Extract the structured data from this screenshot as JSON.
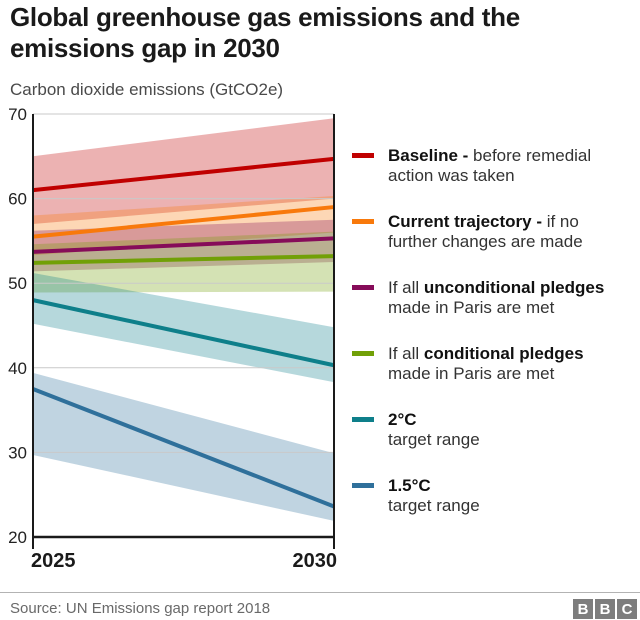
{
  "header": {
    "title_line1": "Global greenhouse gas emissions and the",
    "title_line2": "emissions gap in 2030",
    "subtitle": "Carbon dioxide emissions (GtCO2e)"
  },
  "chart_data": {
    "type": "line",
    "title": "Global greenhouse gas emissions and the emissions gap in 2030",
    "ylabel": "Carbon dioxide emissions (GtCO2e)",
    "x": [
      2025,
      2030
    ],
    "x_tick_labels": [
      "2025",
      "2030"
    ],
    "ylim": [
      20,
      70
    ],
    "yticks": [
      20,
      30,
      40,
      50,
      60,
      70
    ],
    "grid": true,
    "legend_position": "right",
    "band_opacity": 0.3,
    "series": [
      {
        "id": "baseline",
        "name": "Baseline - before remedial action was taken",
        "color": "#c00000",
        "values": [
          61,
          64.7
        ],
        "band_upper": [
          65,
          69.5
        ],
        "band_lower": [
          57,
          60
        ]
      },
      {
        "id": "current-trajectory",
        "name": "Current trajectory - if no further changes are made",
        "color": "#f8790b",
        "values": [
          55.5,
          59
        ],
        "band_upper": [
          58,
          60.3
        ],
        "band_lower": [
          53.3,
          56
        ]
      },
      {
        "id": "unconditional-pledges",
        "name": "If all unconditional pledges made in Paris are met",
        "color": "#860c59",
        "values": [
          53.7,
          55.3
        ],
        "band_upper": [
          56.2,
          57.5
        ],
        "band_lower": [
          51.4,
          52.5
        ]
      },
      {
        "id": "conditional-pledges",
        "name": "If all conditional pledges made in Paris are met",
        "color": "#71a007",
        "values": [
          52.4,
          53.2
        ],
        "band_upper": [
          54.6,
          56.1
        ],
        "band_lower": [
          48.9,
          49
        ]
      },
      {
        "id": "two-degrees",
        "name": "2°C target range",
        "color": "#0e7f8a",
        "values": [
          48,
          40.3
        ],
        "band_upper": [
          51.2,
          44.8
        ],
        "band_lower": [
          45.2,
          38.3
        ]
      },
      {
        "id": "one-point-five-degrees",
        "name": "1.5°C target range",
        "color": "#2f709b",
        "values": [
          37.5,
          23.6
        ],
        "band_upper": [
          39.4,
          29.9
        ],
        "band_lower": [
          29.7,
          21.9
        ]
      }
    ]
  },
  "legend": {
    "items": [
      {
        "id": "baseline",
        "color": "#c00000",
        "lines": [
          [
            {
              "t": "Baseline - ",
              "b": true
            },
            {
              "t": "before remedial",
              "b": false
            }
          ],
          [
            {
              "t": "action was taken",
              "b": false
            }
          ]
        ]
      },
      {
        "id": "current-trajectory",
        "color": "#f8790b",
        "lines": [
          [
            {
              "t": "Current trajectory - ",
              "b": true
            },
            {
              "t": "if no",
              "b": false
            }
          ],
          [
            {
              "t": "further changes are made",
              "b": false
            }
          ]
        ]
      },
      {
        "id": "unconditional-pledges",
        "color": "#860c59",
        "lines": [
          [
            {
              "t": "If all ",
              "b": false
            },
            {
              "t": "unconditional pledges",
              "b": true
            }
          ],
          [
            {
              "t": "made in Paris are met",
              "b": false
            }
          ]
        ]
      },
      {
        "id": "conditional-pledges",
        "color": "#71a007",
        "lines": [
          [
            {
              "t": "If all ",
              "b": false
            },
            {
              "t": "conditional pledges",
              "b": true
            }
          ],
          [
            {
              "t": "made in Paris are met",
              "b": false
            }
          ]
        ]
      },
      {
        "id": "two-degrees",
        "color": "#0e7f8a",
        "lines": [
          [
            {
              "t": "2°C",
              "b": true
            }
          ],
          [
            {
              "t": "target range",
              "b": false
            }
          ]
        ]
      },
      {
        "id": "one-point-five-degrees",
        "color": "#2f709b",
        "lines": [
          [
            {
              "t": "1.5°C",
              "b": true
            }
          ],
          [
            {
              "t": "target range",
              "b": false
            }
          ]
        ]
      }
    ]
  },
  "footer": {
    "source": "Source: UN Emissions gap report 2018",
    "bbc_letters": [
      "B",
      "B",
      "C"
    ]
  }
}
